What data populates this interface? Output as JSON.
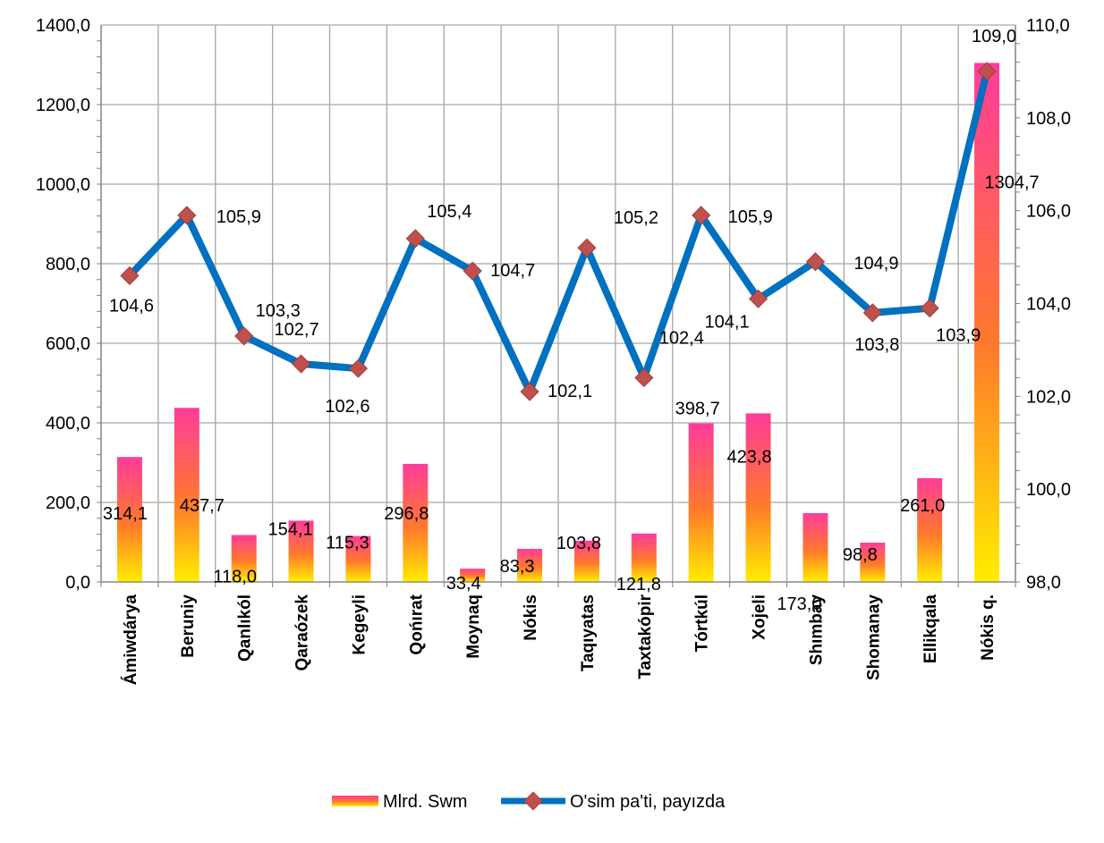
{
  "chart_data": {
    "type": "bar+line",
    "categories": [
      "Ámiwdárya",
      "Beruniy",
      "Qanlıkól",
      "Qaraózek",
      "Kegeyli",
      "Qońırat",
      "Moynaq",
      "Nókis",
      "Taqıyatas",
      "Taxtakópir",
      "Tórtkúl",
      "Xojeli",
      "Shımbay",
      "Shomanay",
      "Ellikqala",
      "Nókis q."
    ],
    "series": [
      {
        "name": "Mlrd. Swm",
        "type": "bar",
        "axis": "left",
        "values": [
          314.1,
          437.7,
          118.0,
          154.1,
          115.3,
          296.8,
          33.4,
          83.3,
          103.8,
          121.8,
          398.7,
          423.8,
          173.0,
          98.8,
          261.0,
          1304.7
        ],
        "labels": [
          "314,1",
          "437,7",
          "118,0",
          "154,1",
          "115,3",
          "296,8",
          "33,4",
          "83,3",
          "103,8",
          "121,8",
          "398,7",
          "423,8",
          "173,0",
          "98,8",
          "261,0",
          "1304,7"
        ]
      },
      {
        "name": "O'sim pa'ti, payızda",
        "type": "line",
        "axis": "right",
        "values": [
          104.6,
          105.9,
          103.3,
          102.7,
          102.6,
          105.4,
          104.7,
          102.1,
          105.2,
          102.4,
          105.9,
          104.1,
          104.9,
          103.8,
          103.9,
          109.0
        ],
        "labels": [
          "104,6",
          "105,9",
          "103,3",
          "102,7",
          "102,6",
          "105,4",
          "104,7",
          "102,1",
          "105,2",
          "102,4",
          "105,9",
          "104,1",
          "104,9",
          "103,8",
          "103,9",
          "109,0"
        ]
      }
    ],
    "y_left": {
      "lim": [
        0,
        1400
      ],
      "ticks": [
        "0,0",
        "200,0",
        "400,0",
        "600,0",
        "800,0",
        "1000,0",
        "1200,0",
        "1400,0"
      ]
    },
    "y_right": {
      "lim": [
        98,
        110
      ],
      "ticks": [
        "98,0",
        "100,0",
        "102,0",
        "104,0",
        "106,0",
        "108,0",
        "110,0"
      ]
    },
    "grid": true,
    "legend": "bottom",
    "colors": {
      "bar_top": "#ff3c9a",
      "bar_mid": "#ff7a2a",
      "bar_bottom": "#ffee00",
      "line": "#0070c0",
      "marker": "#c0504d",
      "grid": "#a6a6a6"
    }
  }
}
